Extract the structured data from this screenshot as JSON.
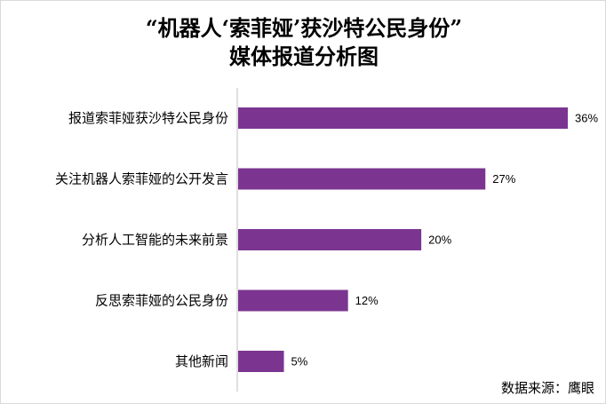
{
  "chart_data": {
    "type": "bar",
    "orientation": "horizontal",
    "title_lines": [
      "“机器人‘索菲娅’获沙特公民身份”",
      "媒体报道分析图"
    ],
    "categories": [
      "报道索菲娅获沙特公民身份",
      "关注机器人索菲娅的公开发言",
      "分析人工智能的未来前景",
      "反思索菲娅的公民身份",
      "其他新闻"
    ],
    "values": [
      36,
      27,
      20,
      12,
      5
    ],
    "data_labels": [
      "36%",
      "27%",
      "20%",
      "12%",
      "5%"
    ],
    "unit": "%",
    "xlim": [
      0,
      36
    ],
    "grid": false,
    "bar_color": "#7b3590"
  },
  "source_text": "数据来源：鹰眼"
}
